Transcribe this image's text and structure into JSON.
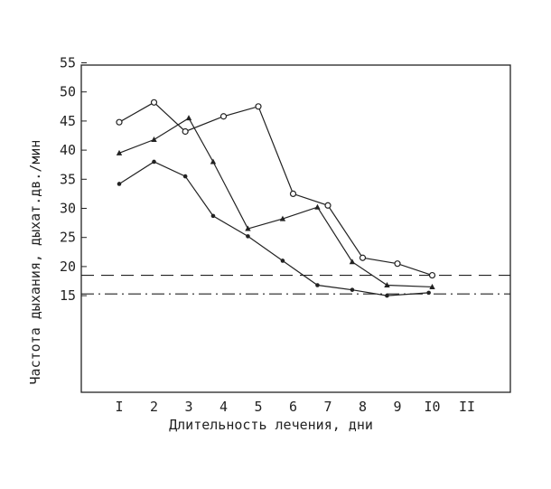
{
  "chart_data": {
    "type": "line",
    "xlabel": "Длительность лечения, дни",
    "ylabel": "Частота дыхания, дыхат.дв./мин",
    "x_categories": [
      "I",
      "2",
      "3",
      "4",
      "5",
      "6",
      "7",
      "8",
      "9",
      "I0",
      "II"
    ],
    "y_ticks": [
      "15",
      "20",
      "25",
      "30",
      "35",
      "40",
      "45",
      "50",
      "55"
    ],
    "y_tick_values": [
      15,
      20,
      25,
      30,
      35,
      40,
      45,
      50,
      55
    ],
    "ylim": [
      5,
      65
    ],
    "xlim": [
      0,
      12
    ],
    "grid": false,
    "series": [
      {
        "marker": "circle-open",
        "color": "#222222",
        "x": [
          1,
          2,
          2.9,
          4,
          5,
          6,
          7,
          8,
          9,
          10
        ],
        "y": [
          44.8,
          48.2,
          43.2,
          45.8,
          47.5,
          32.5,
          30.5,
          21.5,
          20.5,
          18.5
        ]
      },
      {
        "marker": "triangle",
        "color": "#222222",
        "x": [
          1,
          2,
          3,
          3.7,
          4.7,
          5.7,
          6.7,
          7.7,
          8.7,
          10
        ],
        "y": [
          39.5,
          41.8,
          45.5,
          38,
          26.5,
          28.2,
          30.2,
          20.8,
          16.8,
          16.5
        ]
      },
      {
        "marker": "dot",
        "color": "#222222",
        "x": [
          1,
          2,
          2.9,
          3.7,
          4.7,
          5.7,
          6.7,
          7.7,
          8.7,
          9.9
        ],
        "y": [
          34.2,
          38,
          35.5,
          28.7,
          25.2,
          21,
          16.8,
          16,
          15,
          15.5
        ]
      }
    ],
    "reference_lines": [
      {
        "y": 18.5,
        "style": "dashed",
        "color": "#222222"
      },
      {
        "y": 15.3,
        "style": "dash-dot",
        "color": "#222222"
      }
    ]
  }
}
